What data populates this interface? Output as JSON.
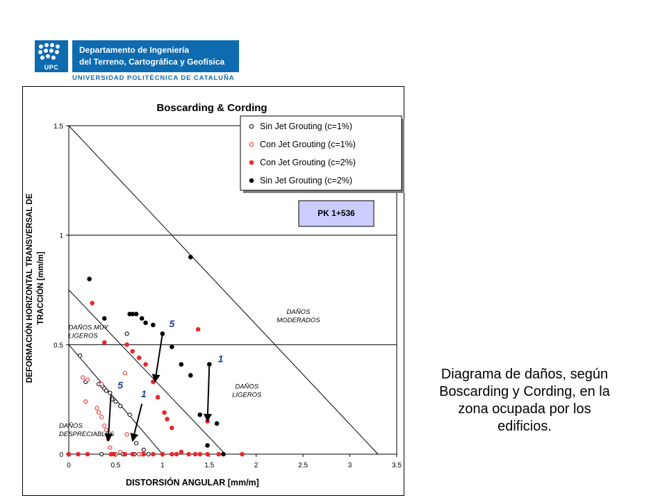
{
  "logo": {
    "short_name": "UPC",
    "department_line1": "Departamento de Ingeniería",
    "department_line2": "del Terreno, Cartográfica y Geofísica",
    "university": "UNIVERSIDAD POLITÈCNICA DE CATALUÑA"
  },
  "caption": "Diagrama de daños, según Boscarding y Cording, en la zona ocupada por los edificios.",
  "chart_data": {
    "type": "scatter",
    "title": "Boscarding & Cording",
    "xlabel": "DISTORSIÓN ANGULAR [mm/m]",
    "ylabel_line1": "DEFORMACIÓN HORIZONTAL TRANSVERSAL DE",
    "ylabel_line2": "TRACCIÓN [mm/m]",
    "xlim": [
      0,
      3.5
    ],
    "ylim": [
      0,
      1.5
    ],
    "xticks": [
      0,
      0.5,
      1,
      1.5,
      2,
      2.5,
      3,
      3.5
    ],
    "xtick_labels": [
      "0",
      "0.5",
      "1",
      "1.5",
      "2",
      "2.5",
      "3",
      "3.5"
    ],
    "yticks": [
      0,
      0.5,
      1,
      1.5
    ],
    "ytick_labels": [
      "0",
      "0.5",
      "1",
      "1.5"
    ],
    "hgrid": [
      0.5,
      1.0
    ],
    "boundaries": [
      {
        "from": [
          0,
          0.5
        ],
        "to": [
          1.0,
          0
        ]
      },
      {
        "from": [
          0,
          0.75
        ],
        "to": [
          1.67,
          0
        ]
      },
      {
        "from": [
          0,
          1.5
        ],
        "to": [
          3.3,
          0
        ]
      }
    ],
    "zones": [
      {
        "lines": [
          "DAÑOS",
          "DESPRECIABLES"
        ],
        "at": [
          0.0,
          0.12
        ]
      },
      {
        "lines": [
          "DAÑOS MUY",
          "LIGEROS"
        ],
        "at": [
          0.1,
          0.57
        ]
      },
      {
        "lines": [
          "DAÑOS",
          "LIGEROS"
        ],
        "at": [
          1.9,
          0.3
        ]
      },
      {
        "lines": [
          "DAÑOS",
          "MODERADOS"
        ],
        "at": [
          2.45,
          0.64
        ]
      }
    ],
    "annotation_box": {
      "label": "PK 1+536",
      "fill": "#ccccff"
    },
    "arrows": [
      {
        "label": "5",
        "from": [
          1.0,
          0.55
        ],
        "to": [
          0.92,
          0.33
        ],
        "label_at": [
          1.1,
          0.58
        ],
        "color": "#1f3b9b"
      },
      {
        "label": "5",
        "from": [
          0.45,
          0.27
        ],
        "to": [
          0.42,
          0.06
        ],
        "label_at": [
          0.55,
          0.3
        ],
        "color": "#1f3b9b"
      },
      {
        "label": "1",
        "from": [
          0.78,
          0.23
        ],
        "to": [
          0.68,
          0.06
        ],
        "label_at": [
          0.8,
          0.26
        ],
        "color": "#1f3b9b"
      },
      {
        "label": "1",
        "from": [
          1.5,
          0.41
        ],
        "to": [
          1.48,
          0.15
        ],
        "label_at": [
          1.62,
          0.42
        ],
        "color": "#1f3b9b"
      }
    ],
    "series": [
      {
        "name": "Sin Jet Grouting (c=1%)",
        "marker": "open",
        "color": "#000000",
        "points": [
          [
            0.12,
            0.45
          ],
          [
            0.18,
            0.33
          ],
          [
            0.32,
            0.32
          ],
          [
            0.36,
            0.31
          ],
          [
            0.38,
            0.3
          ],
          [
            0.4,
            0.29
          ],
          [
            0.44,
            0.28
          ],
          [
            0.46,
            0.25
          ],
          [
            0.5,
            0.24
          ],
          [
            0.55,
            0.22
          ],
          [
            0.62,
            0.55
          ],
          [
            0.65,
            0.18
          ],
          [
            0.72,
            0.05
          ],
          [
            0.8,
            0.02
          ],
          [
            0.85,
            0.0
          ],
          [
            0.35,
            0.0
          ],
          [
            0.5,
            0.0
          ],
          [
            0.58,
            0.0
          ],
          [
            0.7,
            0.0
          ],
          [
            0.75,
            0.0
          ]
        ]
      },
      {
        "name": "Con Jet Grouting (c=1%)",
        "marker": "open",
        "color": "#e8282c",
        "points": [
          [
            0.15,
            0.35
          ],
          [
            0.2,
            0.34
          ],
          [
            0.35,
            0.32
          ],
          [
            0.6,
            0.37
          ],
          [
            0.18,
            0.24
          ],
          [
            0.3,
            0.21
          ],
          [
            0.32,
            0.19
          ],
          [
            0.35,
            0.17
          ],
          [
            0.38,
            0.13
          ],
          [
            0.4,
            0.11
          ],
          [
            0.42,
            0.07
          ],
          [
            0.44,
            0.03
          ],
          [
            0.47,
            0.0
          ],
          [
            0.5,
            0.0
          ],
          [
            0.55,
            0.01
          ],
          [
            0.62,
            0.09
          ],
          [
            0.68,
            0.0
          ],
          [
            0.75,
            0.0
          ],
          [
            0.78,
            0.0
          ]
        ]
      },
      {
        "name": "Con Jet Grouting (c=2%)",
        "marker": "filled",
        "color": "#e8282c",
        "points": [
          [
            0.25,
            0.69
          ],
          [
            0.38,
            0.51
          ],
          [
            0.62,
            0.5
          ],
          [
            0.68,
            0.47
          ],
          [
            0.75,
            0.44
          ],
          [
            0.82,
            0.41
          ],
          [
            0.9,
            0.33
          ],
          [
            0.95,
            0.26
          ],
          [
            1.02,
            0.19
          ],
          [
            1.05,
            0.16
          ],
          [
            1.1,
            0.12
          ],
          [
            1.38,
            0.57
          ],
          [
            1.48,
            0.15
          ],
          [
            0.0,
            0.0
          ],
          [
            0.1,
            0.0
          ],
          [
            0.2,
            0.0
          ],
          [
            0.45,
            0.0
          ],
          [
            0.48,
            0.0
          ],
          [
            0.6,
            0.0
          ],
          [
            0.68,
            0.0
          ],
          [
            0.8,
            0.0
          ],
          [
            0.9,
            0.0
          ],
          [
            1.0,
            0.0
          ],
          [
            1.1,
            0.0
          ],
          [
            1.15,
            0.0
          ],
          [
            1.2,
            0.01
          ],
          [
            1.28,
            0.0
          ],
          [
            1.35,
            0.0
          ],
          [
            1.4,
            0.0
          ],
          [
            1.48,
            0.0
          ],
          [
            1.6,
            0.0
          ],
          [
            1.85,
            0.0
          ]
        ]
      },
      {
        "name": "Sin Jet Grouting (c=2%)",
        "marker": "filled",
        "color": "#000000",
        "points": [
          [
            0.22,
            0.8
          ],
          [
            0.38,
            0.62
          ],
          [
            0.65,
            0.64
          ],
          [
            0.68,
            0.64
          ],
          [
            0.72,
            0.64
          ],
          [
            0.78,
            0.62
          ],
          [
            0.82,
            0.6
          ],
          [
            0.9,
            0.59
          ],
          [
            1.0,
            0.55
          ],
          [
            1.1,
            0.49
          ],
          [
            1.2,
            0.41
          ],
          [
            1.3,
            0.36
          ],
          [
            1.4,
            0.18
          ],
          [
            1.5,
            0.41
          ],
          [
            1.58,
            0.14
          ],
          [
            1.48,
            0.04
          ],
          [
            1.3,
            0.9
          ],
          [
            1.65,
            0.0
          ]
        ]
      }
    ]
  }
}
